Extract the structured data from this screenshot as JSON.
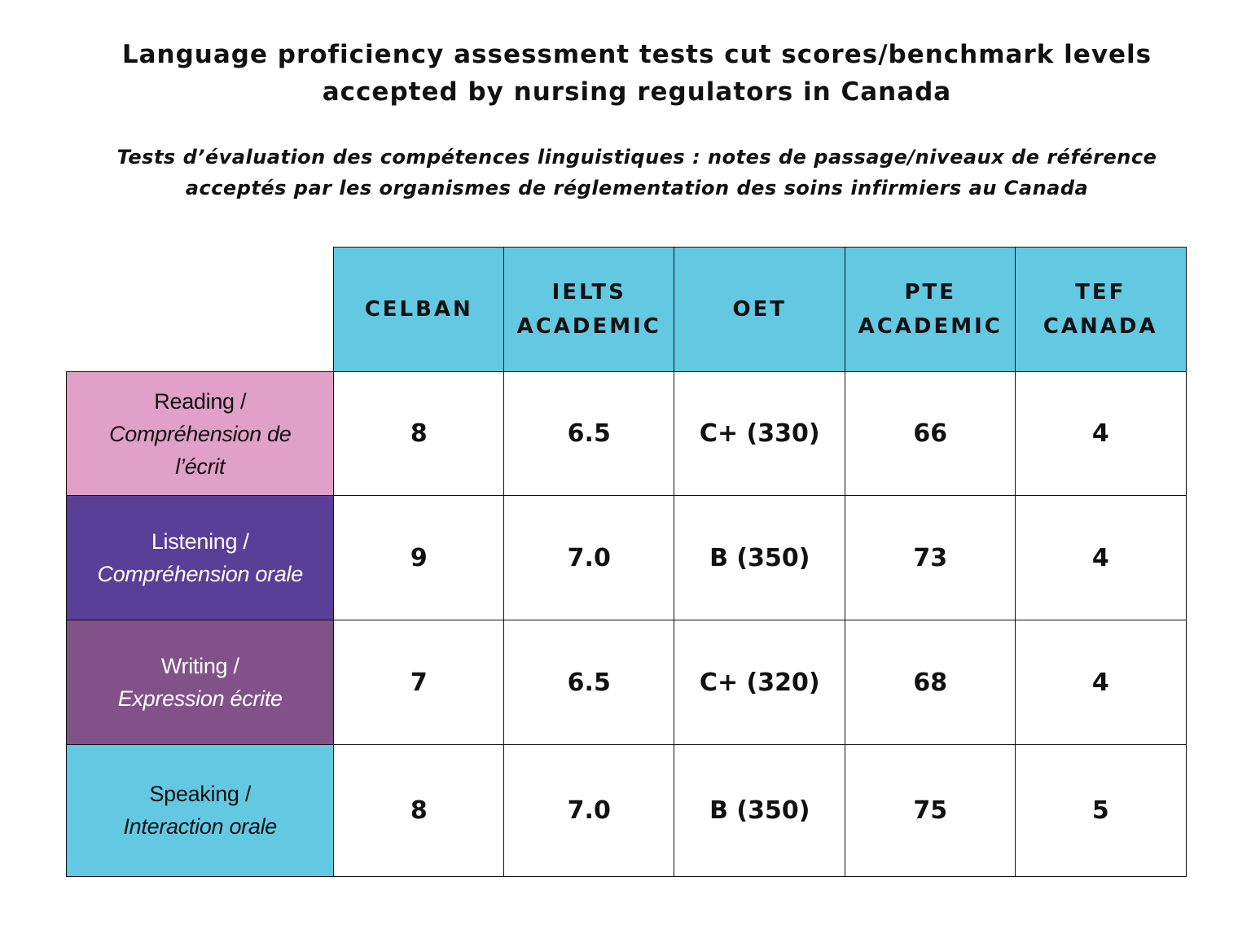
{
  "title": {
    "line1": "Language proficiency assessment tests cut scores/benchmark levels",
    "line2": "accepted by nursing regulators in Canada"
  },
  "subtitle": {
    "line1": "Tests d’évaluation des compétences linguistiques : notes de passage/niveaux de référence",
    "line2": "acceptés par les organismes de réglementation des soins infirmiers au Canada"
  },
  "table": {
    "columns": [
      {
        "line1": "CELBAN",
        "line2": ""
      },
      {
        "line1": "IELTS",
        "line2": "ACADEMIC"
      },
      {
        "line1": "OET",
        "line2": ""
      },
      {
        "line1": "PTE",
        "line2": "ACADEMIC"
      },
      {
        "line1": "TEF",
        "line2": "CANADA"
      }
    ],
    "rows": [
      {
        "en": "Reading",
        "slash": " /",
        "fr1": "Compréhension de",
        "fr2": "l’écrit",
        "color": "#e0a0c8",
        "text_color": "#111111",
        "values": [
          "8",
          "6.5",
          "C+ (330)",
          "66",
          "4"
        ]
      },
      {
        "en": "Listening",
        "slash": " /",
        "fr1": "Compréhension orale",
        "fr2": "",
        "color": "#5a3f99",
        "text_color": "#ffffff",
        "values": [
          "9",
          "7.0",
          "B (350)",
          "73",
          "4"
        ]
      },
      {
        "en": "Writing",
        "slash": " /",
        "fr1": "Expression écrite",
        "fr2": "",
        "color": "#815288",
        "text_color": "#ffffff",
        "values": [
          "7",
          "6.5",
          "C+ (320)",
          "68",
          "4"
        ]
      },
      {
        "en": "Speaking",
        "slash": " /",
        "fr1": "Interaction orale",
        "fr2": "",
        "color": "#63c9e3",
        "text_color": "#111111",
        "values": [
          "8",
          "7.0",
          "B (350)",
          "75",
          "5"
        ]
      }
    ]
  }
}
